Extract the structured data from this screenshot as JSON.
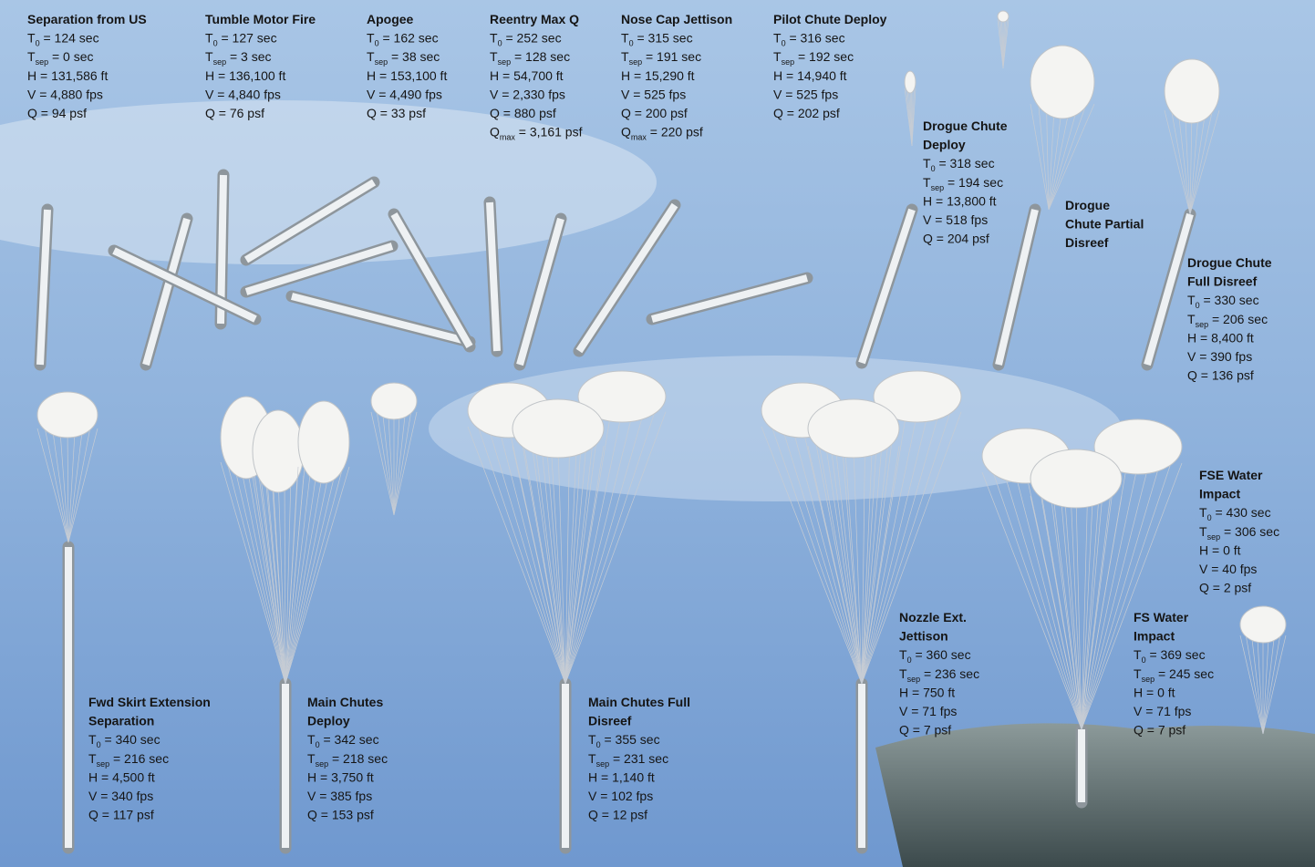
{
  "events": [
    {
      "title": [
        "Separation from US"
      ],
      "lines": [
        [
          "T",
          "0",
          " = 124 sec"
        ],
        [
          "T",
          "sep",
          " = 0 sec"
        ],
        [
          "H = 131,586 ft"
        ],
        [
          "V = 4,880 fps"
        ],
        [
          "Q = 94 psf"
        ]
      ]
    },
    {
      "title": [
        "Tumble Motor Fire"
      ],
      "lines": [
        [
          "T",
          "0",
          " = 127 sec"
        ],
        [
          "T",
          "sep",
          " = 3 sec"
        ],
        [
          "H = 136,100 ft"
        ],
        [
          "V = 4,840 fps"
        ],
        [
          "Q = 76 psf"
        ]
      ]
    },
    {
      "title": [
        "Apogee"
      ],
      "lines": [
        [
          "T",
          "0",
          " = 162 sec"
        ],
        [
          "T",
          "sep",
          " = 38 sec"
        ],
        [
          "H = 153,100 ft"
        ],
        [
          "V = 4,490 fps"
        ],
        [
          "Q = 33 psf"
        ]
      ]
    },
    {
      "title": [
        "Reentry Max Q"
      ],
      "lines": [
        [
          "T",
          "0",
          " = 252 sec"
        ],
        [
          "T",
          "sep",
          " = 128 sec"
        ],
        [
          "H = 54,700 ft"
        ],
        [
          "V = 2,330 fps"
        ],
        [
          "Q = 880 psf"
        ],
        [
          "Q",
          "max",
          " = 3,161 psf"
        ]
      ]
    },
    {
      "title": [
        "Nose Cap Jettison"
      ],
      "lines": [
        [
          "T",
          "0",
          " = 315 sec"
        ],
        [
          "T",
          "sep",
          " = 191 sec"
        ],
        [
          "H = 15,290 ft"
        ],
        [
          "V = 525 fps"
        ],
        [
          "Q = 200 psf"
        ],
        [
          "Q",
          "max",
          " = 220 psf"
        ]
      ]
    },
    {
      "title": [
        "Pilot Chute Deploy"
      ],
      "lines": [
        [
          "T",
          "0",
          " = 316 sec"
        ],
        [
          "T",
          "sep",
          " = 192 sec"
        ],
        [
          "H = 14,940 ft"
        ],
        [
          "V = 525 fps"
        ],
        [
          "Q = 202 psf"
        ]
      ]
    },
    {
      "title": [
        "Drogue Chute",
        "Deploy"
      ],
      "lines": [
        [
          "T",
          "0",
          " = 318 sec"
        ],
        [
          "T",
          "sep",
          " = 194 sec"
        ],
        [
          "H = 13,800 ft"
        ],
        [
          "V = 518 fps"
        ],
        [
          "Q = 204 psf"
        ]
      ]
    },
    {
      "title": [
        "Drogue",
        "Chute Partial",
        "Disreef"
      ],
      "lines": []
    },
    {
      "title": [
        "Drogue Chute",
        "Full Disreef"
      ],
      "lines": [
        [
          "T",
          "0",
          " = 330 sec"
        ],
        [
          "T",
          "sep",
          " = 206 sec"
        ],
        [
          "H = 8,400 ft"
        ],
        [
          "V = 390 fps"
        ],
        [
          "Q = 136 psf"
        ]
      ]
    },
    {
      "title": [
        "Fwd Skirt Extension",
        "Separation"
      ],
      "lines": [
        [
          "T",
          "0",
          " = 340 sec"
        ],
        [
          "T",
          "sep",
          " = 216 sec"
        ],
        [
          "H = 4,500 ft"
        ],
        [
          "V = 340 fps"
        ],
        [
          "Q = 117 psf"
        ]
      ]
    },
    {
      "title": [
        "Main Chutes",
        "Deploy"
      ],
      "lines": [
        [
          "T",
          "0",
          " = 342 sec"
        ],
        [
          "T",
          "sep",
          " = 218 sec"
        ],
        [
          "H = 3,750 ft"
        ],
        [
          "V = 385 fps"
        ],
        [
          "Q = 153 psf"
        ]
      ]
    },
    {
      "title": [
        "Main Chutes Full",
        "Disreef"
      ],
      "lines": [
        [
          "T",
          "0",
          " = 355 sec"
        ],
        [
          "T",
          "sep",
          " = 231 sec"
        ],
        [
          "H = 1,140 ft"
        ],
        [
          "V = 102 fps"
        ],
        [
          "Q = 12 psf"
        ]
      ]
    },
    {
      "title": [
        "Nozzle Ext.",
        "Jettison"
      ],
      "lines": [
        [
          "T",
          "0",
          " = 360 sec"
        ],
        [
          "T",
          "sep",
          " = 236 sec"
        ],
        [
          "H = 750 ft"
        ],
        [
          "V = 71 fps"
        ],
        [
          "Q = 7 psf"
        ]
      ]
    },
    {
      "title": [
        "FS Water",
        "Impact"
      ],
      "lines": [
        [
          "T",
          "0",
          " = 369 sec"
        ],
        [
          "T",
          "sep",
          " = 245 sec"
        ],
        [
          "H = 0 ft"
        ],
        [
          "V = 71 fps"
        ],
        [
          "Q = 7 psf"
        ]
      ]
    },
    {
      "title": [
        "FSE Water",
        "Impact"
      ],
      "lines": [
        [
          "T",
          "0",
          " = 430 sec"
        ],
        [
          "T",
          "sep",
          " = 306 sec"
        ],
        [
          "H = 0 ft"
        ],
        [
          "V = 40 fps"
        ],
        [
          "Q = 2 psf"
        ]
      ]
    }
  ]
}
